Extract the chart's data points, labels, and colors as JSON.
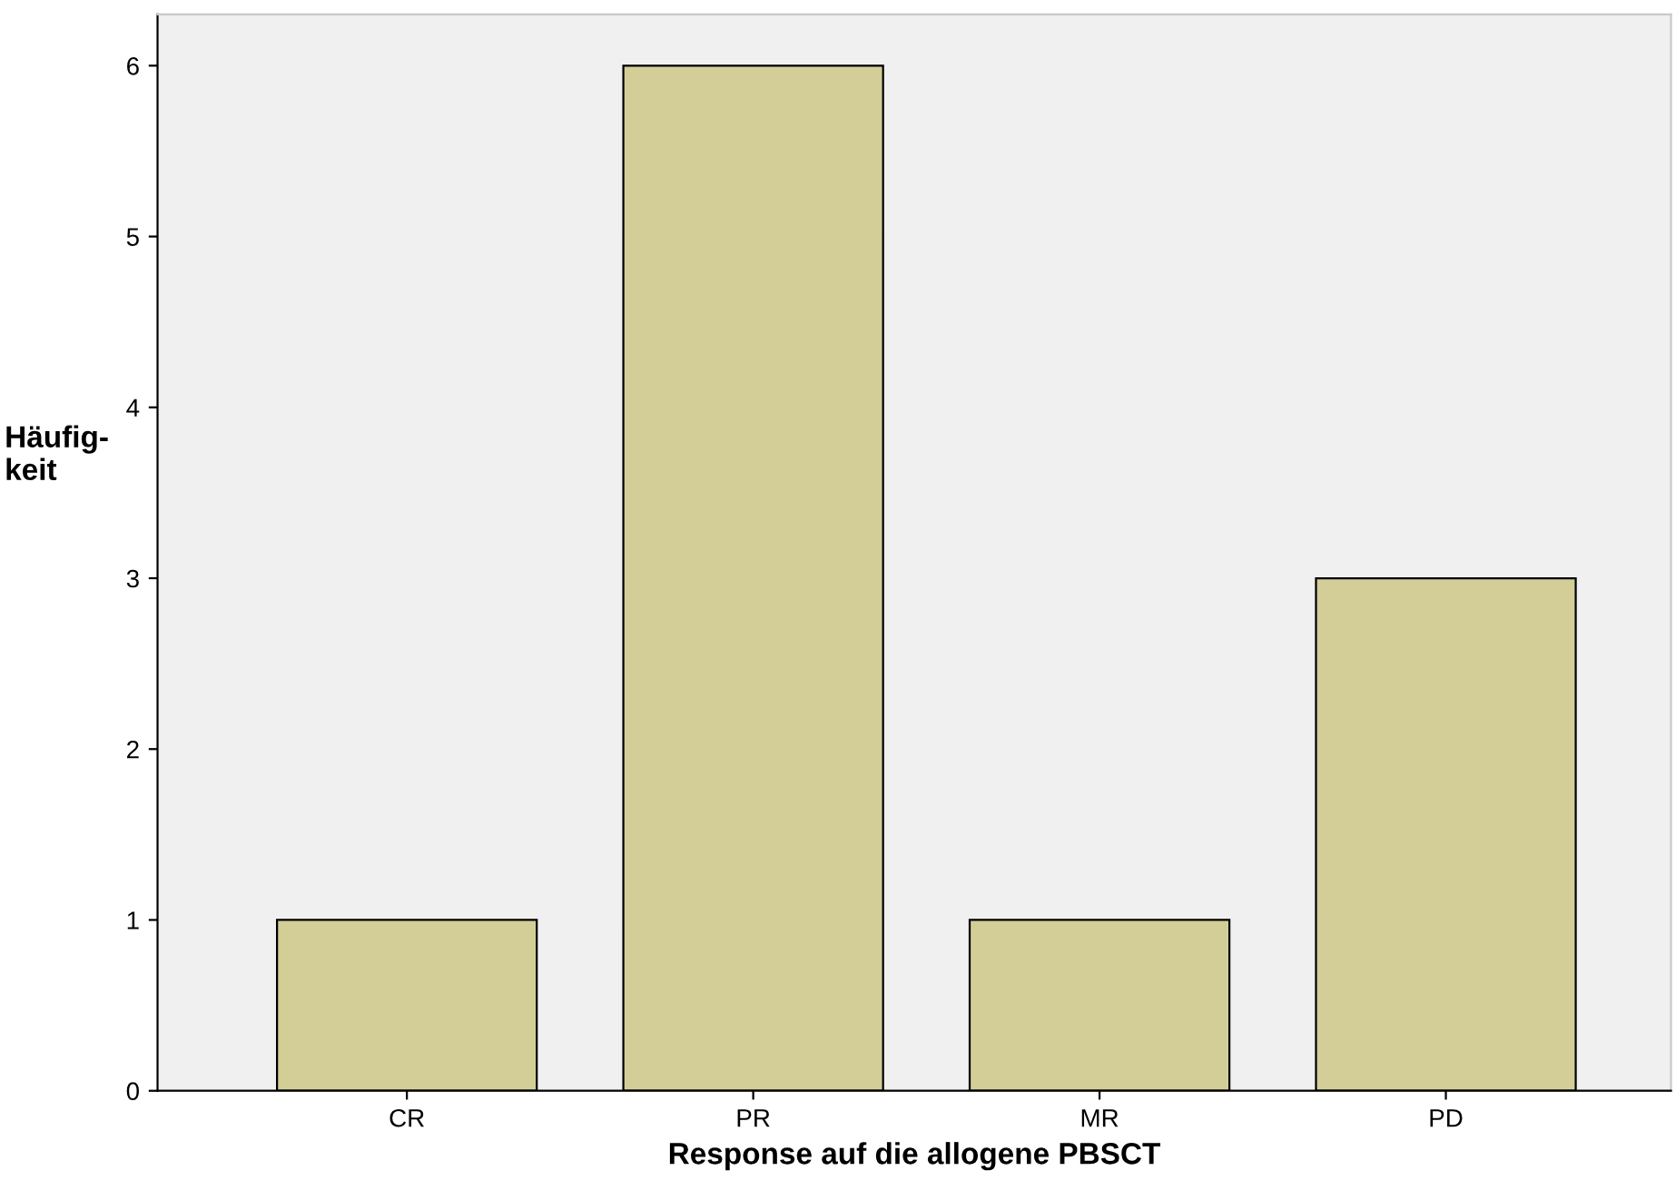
{
  "chart_data": {
    "type": "bar",
    "xlabel": "Response auf die allogene PBSCT",
    "ylabel": "Häufig-\nkeit",
    "categories": [
      "CR",
      "PR",
      "MR",
      "PD"
    ],
    "values": [
      1,
      6,
      1,
      3
    ],
    "color": "#d3ce97",
    "ylim": [
      0,
      6.3
    ],
    "yticks": [
      0,
      1,
      2,
      3,
      4,
      5,
      6
    ],
    "grid": false
  }
}
